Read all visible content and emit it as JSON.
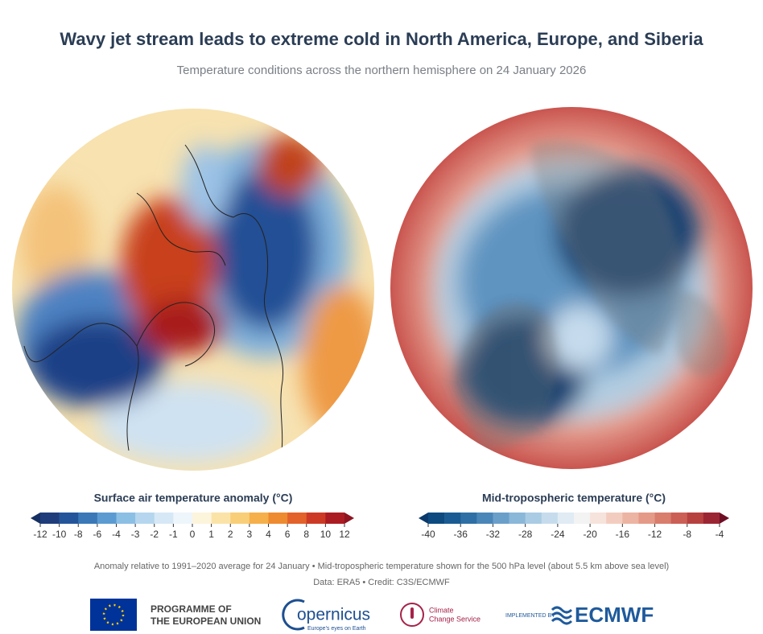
{
  "header": {
    "title": "Wavy jet stream leads to extreme cold in North America, Europe, and Siberia",
    "subtitle": "Temperature conditions across the northern hemisphere on 24 January 2026"
  },
  "legends": [
    {
      "title": "Surface air temperature anomaly (°C)",
      "ticks": [
        "-12",
        "-10",
        "-8",
        "-6",
        "-4",
        "-3",
        "-2",
        "-1",
        "0",
        "1",
        "2",
        "3",
        "4",
        "6",
        "8",
        "10",
        "12"
      ],
      "colors": [
        "#1f3d7a",
        "#24559b",
        "#3a78b8",
        "#5c9bd1",
        "#8cbfe4",
        "#b5d6ee",
        "#d6e8f5",
        "#eef5fb",
        "#fdf4dc",
        "#fbe3a8",
        "#f8ce78",
        "#f5b04b",
        "#ee8a2f",
        "#e3612a",
        "#cc3a25",
        "#aa1c22"
      ],
      "under_color": "#173063",
      "over_color": "#8e1420"
    },
    {
      "title": "Mid-tropospheric temperature (°C)",
      "ticks": [
        "-40",
        "-36",
        "-32",
        "-28",
        "-24",
        "-20",
        "-16",
        "-12",
        "-8",
        "-4"
      ],
      "colors": [
        "#0d4a80",
        "#1a5b93",
        "#2e6fa5",
        "#4a86b8",
        "#6a9fc9",
        "#8bb7d8",
        "#a9cbe4",
        "#c6dced",
        "#e0ebf4",
        "#f3f3f3",
        "#f6e3dc",
        "#f2cdbf",
        "#ecb4a2",
        "#e49a87",
        "#d97d6d",
        "#cb5f55",
        "#b6413f",
        "#9c2533"
      ],
      "under_color": "#0a3a6b",
      "over_color": "#6e0e24"
    }
  ],
  "footer": {
    "note": "Anomaly relative to 1991–2020 average for 24 January • Mid-tropospheric temperature shown for the 500 hPa level (about 5.5 km above sea level)",
    "credit": "Data: ERA5 • Credit: C3S/ECMWF"
  },
  "logos": {
    "eu_line1": "PROGRAMME OF",
    "eu_line2": "THE EUROPEAN UNION",
    "copernicus": "opernicus",
    "copernicus_tagline": "Europe's eyes on Earth",
    "c3s_line1": "Climate",
    "c3s_line2": "Change Service",
    "implemented_by": "IMPLEMENTED BY",
    "ecmwf": "ECMWF"
  }
}
